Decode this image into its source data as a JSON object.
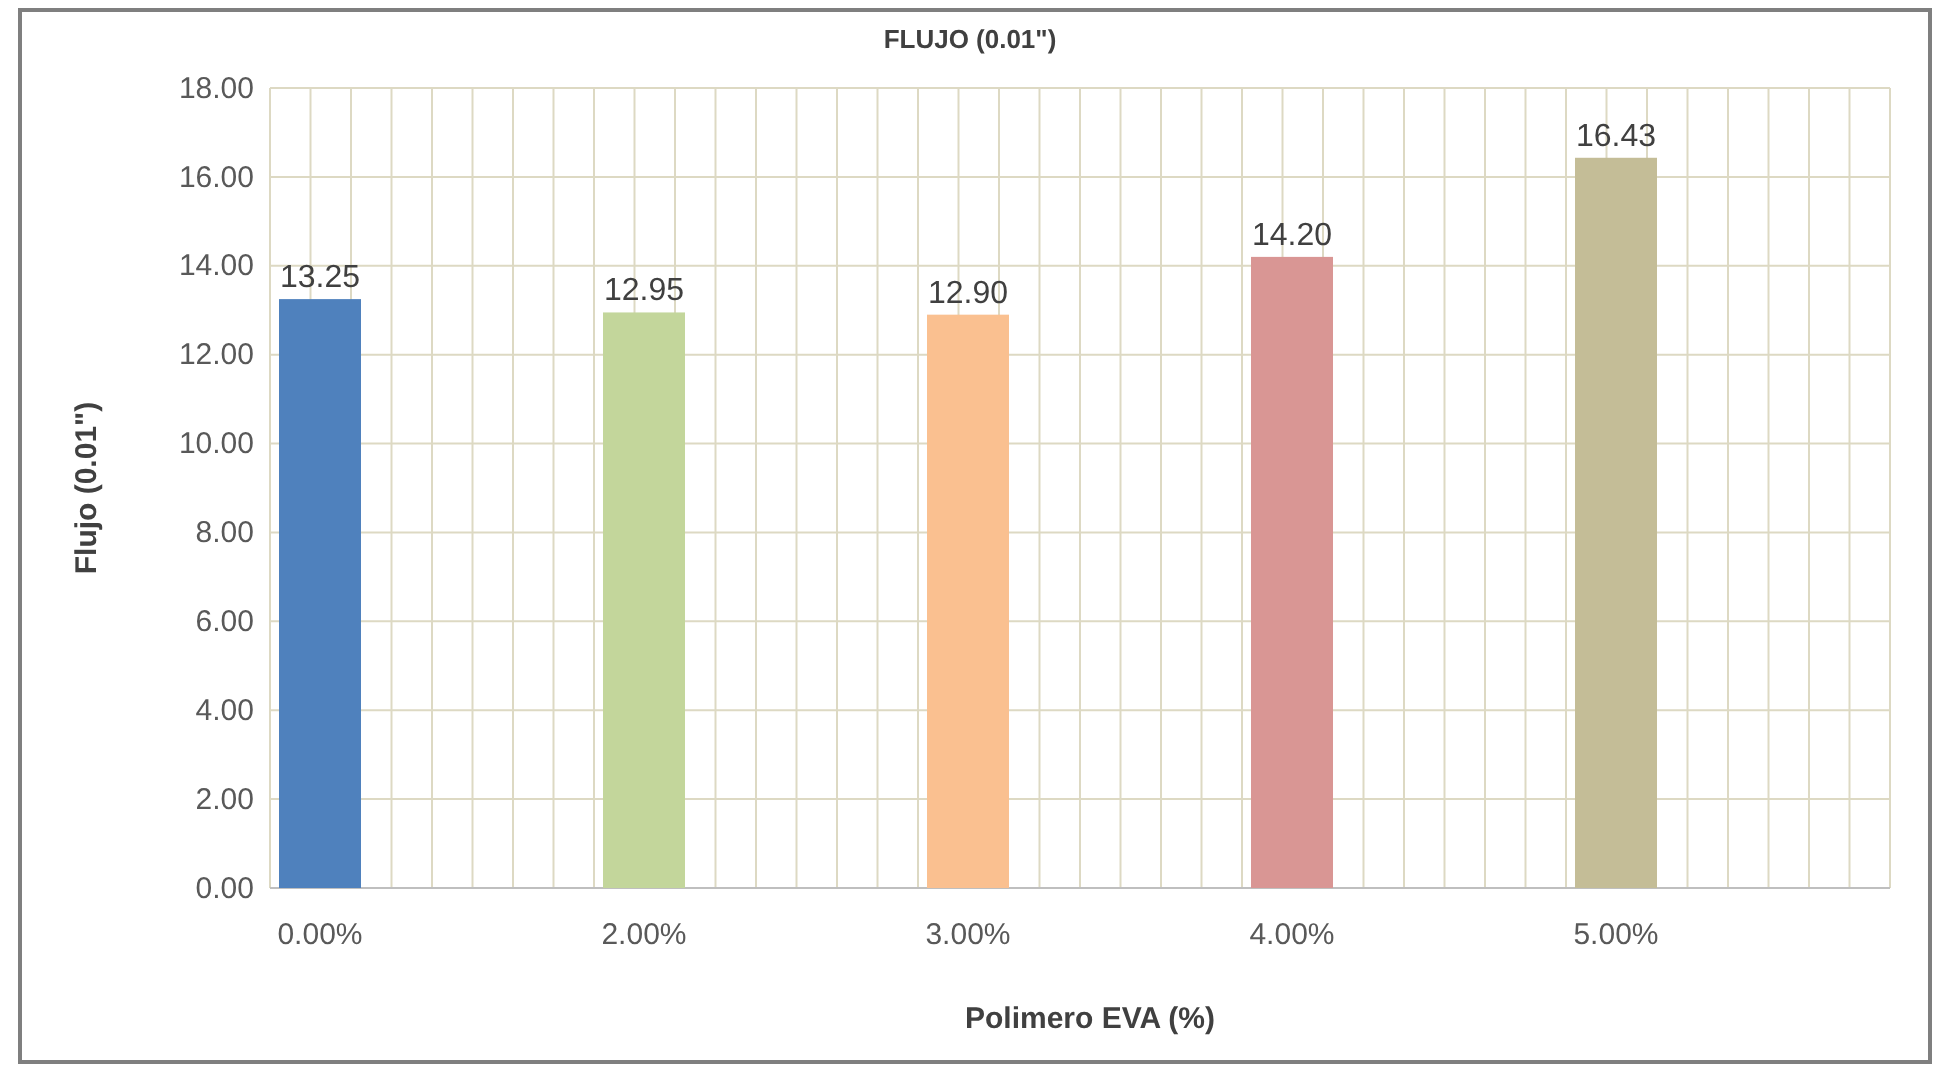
{
  "chart_data": {
    "type": "bar",
    "title": "FLUJO (0.01\")",
    "xlabel": "Polimero EVA  (%)",
    "ylabel": "Flujo (0.01\")",
    "categories": [
      "0.00%",
      "2.00%",
      "3.00%",
      "4.00%",
      "5.00%"
    ],
    "values": [
      13.25,
      12.95,
      12.9,
      14.2,
      16.43
    ],
    "colors": [
      "#4f81bd",
      "#c3d69b",
      "#fac090",
      "#d99694",
      "#c4bd97"
    ],
    "value_labels": [
      "13.25",
      "12.95",
      "12.90",
      "14.20",
      "16.43"
    ],
    "ylim": [
      0,
      18
    ],
    "yticks": [
      {
        "value": 0,
        "label": "0.00"
      },
      {
        "value": 2,
        "label": "2.00"
      },
      {
        "value": 4,
        "label": "4.00"
      },
      {
        "value": 6,
        "label": "6.00"
      },
      {
        "value": 8,
        "label": "8.00"
      },
      {
        "value": 10,
        "label": "10.00"
      },
      {
        "value": 12,
        "label": "12.00"
      },
      {
        "value": 14,
        "label": "14.00"
      },
      {
        "value": 16,
        "label": "16.00"
      },
      {
        "value": 18,
        "label": "18.00"
      }
    ],
    "grid": true
  }
}
